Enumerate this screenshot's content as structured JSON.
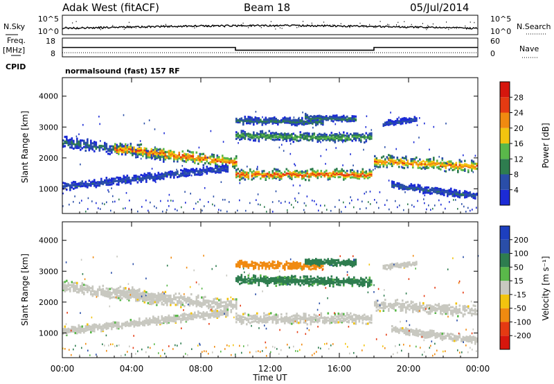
{
  "header": {
    "radar": "Adak West (fitACF)",
    "beam": "Beam 18",
    "date": "05/Jul/2014"
  },
  "noise_panel": {
    "left_label": "N.Sky",
    "right_label": "N.Search",
    "left_ticks": [
      "10^5",
      "10^0"
    ],
    "right_ticks": [
      "10^5",
      "10^0"
    ]
  },
  "freq_panel": {
    "left_label_1": "Freq.",
    "left_label_2": "[MHz]",
    "right_label": "Nave",
    "left_ticks": [
      "18",
      "8"
    ],
    "right_ticks": [
      "60",
      "0"
    ]
  },
  "cpid": {
    "label": "CPID",
    "program": "normalsound (fast) 157 RF"
  },
  "power_panel": {
    "ylabel": "Slant Range [km]",
    "yticks": [
      "4000",
      "3000",
      "2000",
      "1000"
    ],
    "colorbar_label": "Power [dB]",
    "colorbar_ticks": [
      "28",
      "24",
      "20",
      "16",
      "12",
      "8",
      "4"
    ],
    "colors": [
      "#1c2bd6",
      "#2a4ea8",
      "#2e7d4f",
      "#5ab84a",
      "#f2c40f",
      "#f08a10",
      "#e53a12",
      "#d6160d"
    ]
  },
  "velocity_panel": {
    "ylabel": "Slant Range [km]",
    "yticks": [
      "4000",
      "3000",
      "2000",
      "1000"
    ],
    "colorbar_label": "Velocity [m s⁻¹]",
    "colorbar_ticks": [
      "200",
      "100",
      "50",
      "15",
      "-15",
      "-50",
      "-100",
      "-200"
    ],
    "colors": [
      "#1d3fbf",
      "#2a4ea8",
      "#2e7d4f",
      "#5ab84a",
      "#c8c8c0",
      "#f2c40f",
      "#f08a10",
      "#e53a12",
      "#d6160d"
    ]
  },
  "x_axis": {
    "ticks": [
      "00:00",
      "04:00",
      "08:00",
      "12:00",
      "16:00",
      "20:00",
      "00:00"
    ],
    "label": "Time UT"
  },
  "chart_data": {
    "type": "heatmap",
    "title": "Adak West (fitACF)",
    "subtitle": "Beam 18 05/Jul/2014",
    "xlabel": "Time UT",
    "ylabel": "Slant Range [km]",
    "xlim": [
      0,
      24
    ],
    "ylim": [
      200,
      4600
    ],
    "frequency_mhz": {
      "segments": [
        {
          "start": 0,
          "end": 10,
          "value": 13
        },
        {
          "start": 10,
          "end": 18,
          "value": 11
        },
        {
          "start": 18,
          "end": 24,
          "value": 13
        }
      ]
    },
    "power_db_range": [
      0,
      32
    ],
    "velocity_range": [
      -250,
      250
    ],
    "echo_bands": [
      {
        "name": "",
        "start": 0.0,
        "end": 6.0,
        "range_start": 2500,
        "range_end": 2050,
        "width": 300,
        "power": 9,
        "velocity": 0
      },
      {
        "name": "",
        "start": 3.0,
        "end": 10.0,
        "range_start": 2300,
        "range_end": 1850,
        "width": 360,
        "power": 22,
        "velocity": 0
      },
      {
        "name": "",
        "start": 0.0,
        "end": 9.5,
        "range_start": 1050,
        "range_end": 1650,
        "width": 220,
        "power": 7,
        "velocity": 0
      },
      {
        "name": "",
        "start": 10.0,
        "end": 17.9,
        "range_start": 1450,
        "range_end": 1450,
        "width": 280,
        "power": 23,
        "velocity": 0
      },
      {
        "name": "",
        "start": 10.0,
        "end": 17.9,
        "range_start": 2700,
        "range_end": 2650,
        "width": 260,
        "power": 13,
        "velocity": 40
      },
      {
        "name": "",
        "start": 10.0,
        "end": 15.0,
        "range_start": 3200,
        "range_end": 3150,
        "width": 200,
        "power": 10,
        "velocity": -50
      },
      {
        "name": "",
        "start": 14.0,
        "end": 17.0,
        "range_start": 3300,
        "range_end": 3250,
        "width": 180,
        "power": 10,
        "velocity": 60
      },
      {
        "name": "",
        "start": 18.0,
        "end": 24.0,
        "range_start": 1900,
        "range_end": 1700,
        "width": 320,
        "power": 21,
        "velocity": 0
      },
      {
        "name": "",
        "start": 19.0,
        "end": 24.0,
        "range_start": 1100,
        "range_end": 750,
        "width": 200,
        "power": 8,
        "velocity": 0
      },
      {
        "name": "",
        "start": 18.5,
        "end": 20.5,
        "range_start": 3100,
        "range_end": 3250,
        "width": 150,
        "power": 7,
        "velocity": 0
      }
    ]
  }
}
